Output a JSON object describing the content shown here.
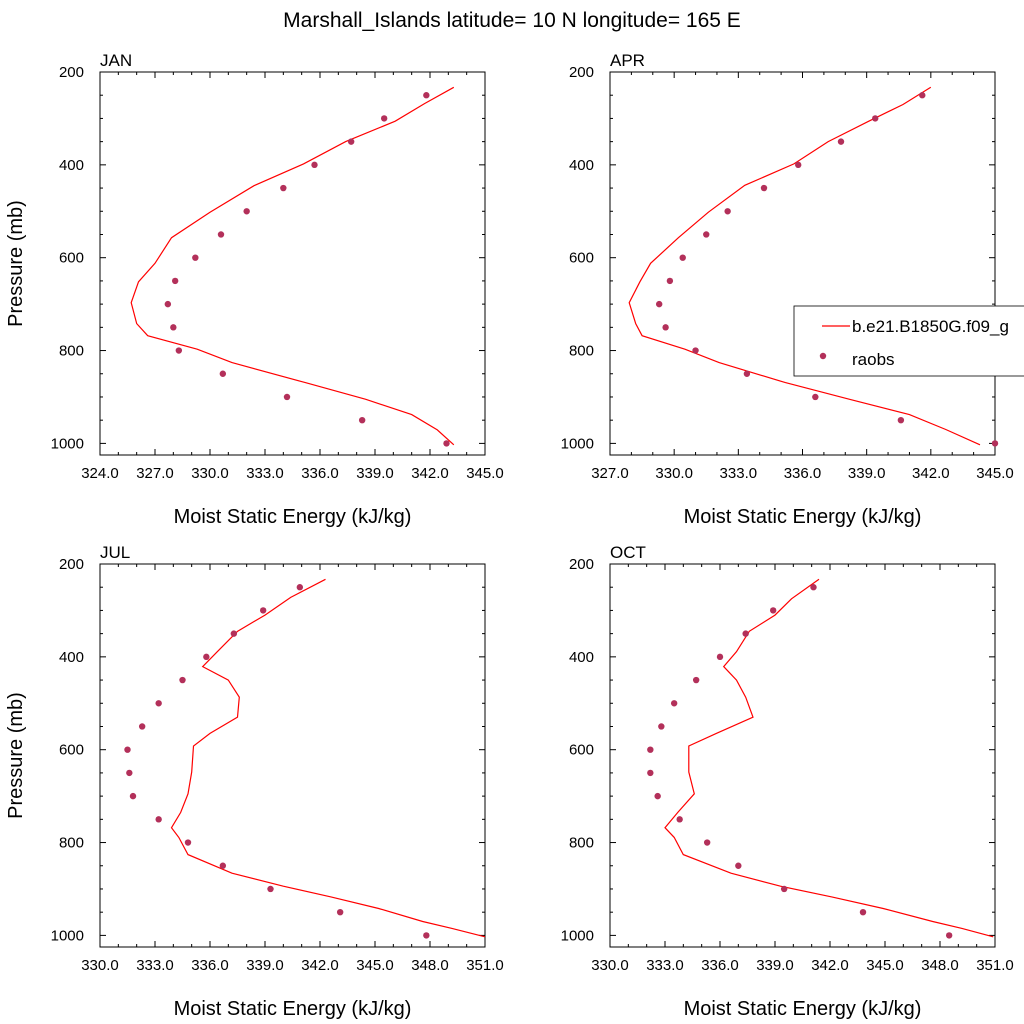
{
  "title": "Marshall_Islands  latitude= 10 N longitude= 165 E",
  "chart_data": [
    {
      "type": "line",
      "panel_label": "JAN",
      "xlabel": "Moist Static Energy (kJ/kg)",
      "ylabel": "Pressure (mb)",
      "xlim": [
        324,
        345
      ],
      "ylim": [
        200,
        1025
      ],
      "y_reversed": true,
      "x_ticks": [
        "324.0",
        "327.0",
        "330.0",
        "333.0",
        "336.0",
        "339.0",
        "342.0",
        "345.0"
      ],
      "y_ticks": [
        "200",
        "400",
        "600",
        "800",
        "1000"
      ],
      "series": [
        {
          "name": "b.e21.B1850G.f09_g",
          "style": "line",
          "color": "#ff0000",
          "points": [
            [
              343.3,
              233
            ],
            [
              341.7,
              268
            ],
            [
              340.1,
              306
            ],
            [
              337.4,
              350
            ],
            [
              335.1,
              398
            ],
            [
              332.4,
              445
            ],
            [
              330.0,
              502
            ],
            [
              327.9,
              557
            ],
            [
              327.0,
              612
            ],
            [
              326.1,
              652
            ],
            [
              325.7,
              697
            ],
            [
              326.0,
              742
            ],
            [
              326.6,
              768
            ],
            [
              329.3,
              797
            ],
            [
              331.2,
              826
            ],
            [
              335.2,
              869
            ],
            [
              338.5,
              905
            ],
            [
              341.0,
              938
            ],
            [
              342.4,
              971
            ],
            [
              343.3,
              1003
            ]
          ]
        },
        {
          "name": "raobs",
          "style": "markers",
          "color": "#b3305a",
          "points": [
            [
              341.8,
              250
            ],
            [
              339.5,
              300
            ],
            [
              337.7,
              350
            ],
            [
              335.7,
              400
            ],
            [
              334.0,
              450
            ],
            [
              332.0,
              500
            ],
            [
              330.6,
              550
            ],
            [
              329.2,
              600
            ],
            [
              328.1,
              650
            ],
            [
              327.7,
              700
            ],
            [
              328.0,
              750
            ],
            [
              328.3,
              800
            ],
            [
              330.7,
              850
            ],
            [
              334.2,
              900
            ],
            [
              338.3,
              950
            ],
            [
              342.9,
              1000
            ]
          ]
        }
      ]
    },
    {
      "type": "line",
      "panel_label": "APR",
      "xlabel": "Moist Static Energy (kJ/kg)",
      "ylabel": "",
      "xlim": [
        327,
        345
      ],
      "ylim": [
        200,
        1025
      ],
      "y_reversed": true,
      "x_ticks": [
        "327.0",
        "330.0",
        "333.0",
        "336.0",
        "339.0",
        "342.0",
        "345.0"
      ],
      "y_ticks": [
        "200",
        "400",
        "600",
        "800",
        "1000"
      ],
      "series": [
        {
          "name": "b.e21.B1850G.f09_g",
          "style": "line",
          "color": "#ff0000",
          "points": [
            [
              342.0,
              233
            ],
            [
              340.7,
              270
            ],
            [
              339.1,
              306
            ],
            [
              337.2,
              350
            ],
            [
              335.6,
              398
            ],
            [
              333.3,
              444
            ],
            [
              331.6,
              502
            ],
            [
              330.2,
              557
            ],
            [
              328.9,
              612
            ],
            [
              328.4,
              652
            ],
            [
              327.9,
              697
            ],
            [
              328.2,
              742
            ],
            [
              328.5,
              768
            ],
            [
              330.5,
              797
            ],
            [
              332.1,
              826
            ],
            [
              335.2,
              869
            ],
            [
              338.2,
              905
            ],
            [
              341.0,
              938
            ],
            [
              342.7,
              970
            ],
            [
              344.3,
              1003
            ]
          ]
        },
        {
          "name": "raobs",
          "style": "markers",
          "color": "#b3305a",
          "points": [
            [
              341.6,
              250
            ],
            [
              339.4,
              300
            ],
            [
              337.8,
              350
            ],
            [
              335.8,
              400
            ],
            [
              334.2,
              450
            ],
            [
              332.5,
              500
            ],
            [
              331.5,
              550
            ],
            [
              330.4,
              600
            ],
            [
              329.8,
              650
            ],
            [
              329.3,
              700
            ],
            [
              329.6,
              750
            ],
            [
              331.0,
              800
            ],
            [
              333.4,
              850
            ],
            [
              336.6,
              900
            ],
            [
              340.6,
              950
            ],
            [
              345.0,
              1000
            ]
          ]
        }
      ]
    },
    {
      "type": "line",
      "panel_label": "JUL",
      "xlabel": "Moist Static Energy (kJ/kg)",
      "ylabel": "Pressure (mb)",
      "xlim": [
        330,
        351
      ],
      "ylim": [
        200,
        1025
      ],
      "y_reversed": true,
      "x_ticks": [
        "330.0",
        "333.0",
        "336.0",
        "339.0",
        "342.0",
        "345.0",
        "348.0",
        "351.0"
      ],
      "y_ticks": [
        "200",
        "400",
        "600",
        "800",
        "1000"
      ],
      "series": [
        {
          "name": "b.e21.B1850G.f09_g",
          "style": "line",
          "color": "#ff0000",
          "points": [
            [
              342.3,
              233
            ],
            [
              340.4,
              272
            ],
            [
              339.0,
              310
            ],
            [
              337.5,
              345
            ],
            [
              336.4,
              389
            ],
            [
              335.6,
              421
            ],
            [
              337.0,
              450
            ],
            [
              337.6,
              487
            ],
            [
              337.5,
              530
            ],
            [
              336.0,
              565
            ],
            [
              335.1,
              592
            ],
            [
              335.0,
              648
            ],
            [
              334.8,
              695
            ],
            [
              334.4,
              735
            ],
            [
              333.9,
              768
            ],
            [
              334.3,
              789
            ],
            [
              334.8,
              826
            ],
            [
              337.2,
              866
            ],
            [
              340.0,
              894
            ],
            [
              342.6,
              917
            ],
            [
              345.2,
              942
            ],
            [
              347.6,
              970
            ],
            [
              349.2,
              985
            ],
            [
              351.0,
              1003
            ]
          ]
        },
        {
          "name": "raobs",
          "style": "markers",
          "color": "#b3305a",
          "points": [
            [
              340.9,
              250
            ],
            [
              338.9,
              300
            ],
            [
              337.3,
              350
            ],
            [
              335.8,
              400
            ],
            [
              334.5,
              450
            ],
            [
              333.2,
              500
            ],
            [
              332.3,
              550
            ],
            [
              331.5,
              600
            ],
            [
              331.6,
              650
            ],
            [
              331.8,
              700
            ],
            [
              333.2,
              750
            ],
            [
              334.8,
              800
            ],
            [
              336.7,
              850
            ],
            [
              339.3,
              900
            ],
            [
              343.1,
              950
            ],
            [
              347.8,
              1000
            ]
          ]
        }
      ]
    },
    {
      "type": "line",
      "panel_label": "OCT",
      "xlabel": "Moist Static Energy (kJ/kg)",
      "ylabel": "",
      "xlim": [
        330,
        351
      ],
      "ylim": [
        200,
        1025
      ],
      "y_reversed": true,
      "x_ticks": [
        "330.0",
        "333.0",
        "336.0",
        "339.0",
        "342.0",
        "345.0",
        "348.0",
        "351.0"
      ],
      "y_ticks": [
        "200",
        "400",
        "600",
        "800",
        "1000"
      ],
      "series": [
        {
          "name": "b.e21.B1850G.f09_g",
          "style": "line",
          "color": "#ff0000",
          "points": [
            [
              341.4,
              233
            ],
            [
              339.9,
              275
            ],
            [
              339.0,
              310
            ],
            [
              337.6,
              345
            ],
            [
              336.9,
              389
            ],
            [
              336.2,
              421
            ],
            [
              336.9,
              450
            ],
            [
              337.4,
              487
            ],
            [
              337.8,
              530
            ],
            [
              335.8,
              565
            ],
            [
              334.3,
              592
            ],
            [
              334.3,
              648
            ],
            [
              334.6,
              695
            ],
            [
              333.7,
              735
            ],
            [
              333.0,
              768
            ],
            [
              333.5,
              789
            ],
            [
              334.0,
              826
            ],
            [
              336.6,
              866
            ],
            [
              339.3,
              894
            ],
            [
              342.1,
              917
            ],
            [
              344.9,
              942
            ],
            [
              347.6,
              970
            ],
            [
              349.2,
              985
            ],
            [
              350.9,
              1003
            ]
          ]
        },
        {
          "name": "raobs",
          "style": "markers",
          "color": "#b3305a",
          "points": [
            [
              341.1,
              250
            ],
            [
              338.9,
              300
            ],
            [
              337.4,
              350
            ],
            [
              336.0,
              400
            ],
            [
              334.7,
              450
            ],
            [
              333.5,
              500
            ],
            [
              332.8,
              550
            ],
            [
              332.2,
              600
            ],
            [
              332.2,
              650
            ],
            [
              332.6,
              700
            ],
            [
              333.8,
              750
            ],
            [
              335.3,
              800
            ],
            [
              337.0,
              850
            ],
            [
              339.5,
              900
            ],
            [
              343.8,
              950
            ],
            [
              348.5,
              1000
            ]
          ]
        }
      ]
    }
  ],
  "legend": {
    "items": [
      {
        "label": "b.e21.B1850G.f09_g",
        "kind": "line",
        "color": "#ff0000"
      },
      {
        "label": "raobs",
        "kind": "marker",
        "color": "#b3305a"
      }
    ]
  }
}
